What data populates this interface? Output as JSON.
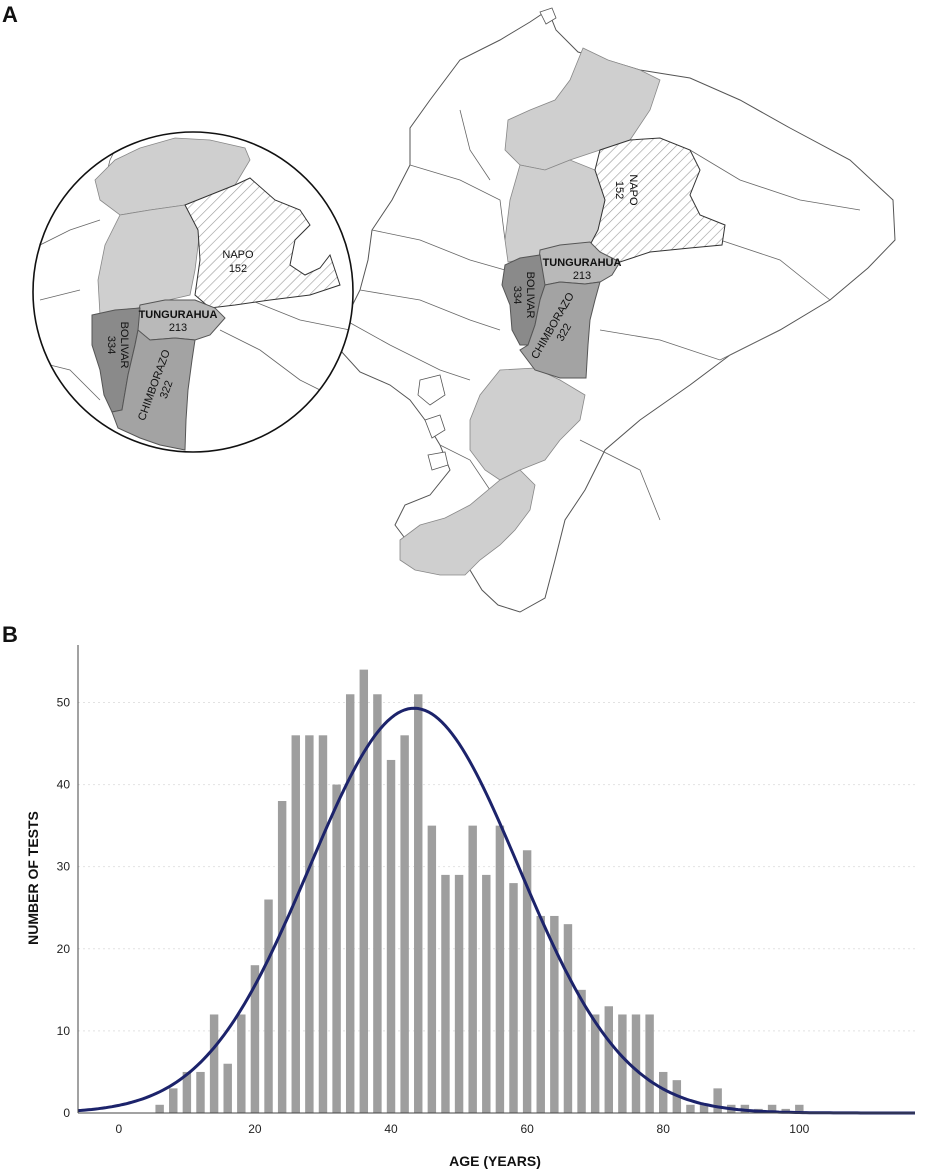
{
  "panels": {
    "a_label": "A",
    "b_label": "B"
  },
  "colors": {
    "light_gray": "#cfcfcf",
    "mid_gray": "#a3a3a3",
    "tungurahua_gray": "#b9b9b9",
    "dark_gray": "#8a8a8a",
    "bar_gray": "#9e9e9e",
    "curve_navy": "#1c236b",
    "outline": "#555555"
  },
  "map": {
    "regions": [
      {
        "name": "NAPO",
        "value": "152",
        "fill": "hatched"
      },
      {
        "name": "TUNGURAHUA",
        "value": "213",
        "fill": "#b9b9b9"
      },
      {
        "name": "BOLIVAR",
        "value": "334",
        "fill": "#8a8a8a"
      },
      {
        "name": "CHIMBORAZO",
        "value": "322",
        "fill": "#a3a3a3"
      }
    ]
  },
  "chart_data": {
    "type": "bar",
    "title": "",
    "xlabel": "AGE (YEARS)",
    "ylabel": "NUMBER OF TESTS",
    "xlim": [
      -6,
      117
    ],
    "ylim": [
      0,
      57
    ],
    "xticks": [
      0,
      20,
      40,
      60,
      80,
      100
    ],
    "yticks": [
      0,
      10,
      20,
      30,
      40,
      50
    ],
    "grid": "horizontal dotted",
    "series": [
      {
        "x": [
          6,
          8,
          10,
          12,
          14,
          16,
          18,
          20,
          22,
          24,
          26,
          28,
          30,
          32,
          34,
          36,
          38,
          40,
          42,
          44,
          46,
          48,
          50,
          52,
          54,
          56,
          58,
          60,
          62,
          64,
          66,
          68,
          70,
          72,
          74,
          76,
          78,
          80,
          82,
          84,
          86,
          88,
          90,
          92,
          94,
          96,
          98,
          100
        ],
        "values": [
          1,
          3,
          5,
          5,
          12,
          6,
          12,
          18,
          26,
          38,
          46,
          46,
          46,
          40,
          51,
          54,
          51,
          43,
          46,
          51,
          35,
          29,
          29,
          35,
          29,
          35,
          28,
          32,
          24,
          24,
          23,
          15,
          12,
          13,
          12,
          12,
          12,
          5,
          4,
          1,
          1,
          3,
          1,
          1,
          0.5,
          1,
          0.5,
          1
        ]
      }
    ],
    "normal_curve": {
      "mean": 43.4,
      "sd": 15.4,
      "peak": 49.3
    }
  }
}
